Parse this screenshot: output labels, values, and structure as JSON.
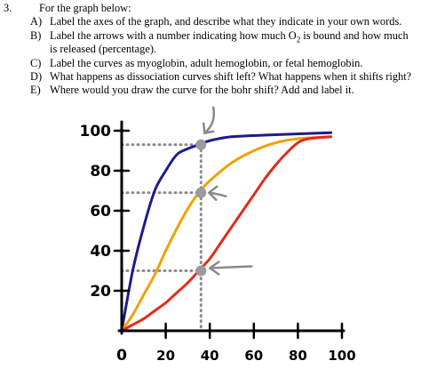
{
  "question": {
    "number": "3.",
    "header": "For the graph below:",
    "items": [
      {
        "letter": "A)",
        "text": "Label the axes of the graph, and describe what they indicate in your own words."
      },
      {
        "letter": "B)",
        "text_before": "Label the arrows with a number indicating how much O",
        "subscript": "2",
        "text_after": " is bound and how much",
        "continuation": "is released (percentage)."
      },
      {
        "letter": "C)",
        "text": "Label the curves as myoglobin, adult hemoglobin, or fetal hemoglobin."
      },
      {
        "letter": "D)",
        "text": "What happens as dissociation curves shift left? What happens when it shifts right?"
      },
      {
        "letter": "E)",
        "text": "Where would you draw the curve for the bohr shift? Add and label it."
      }
    ]
  },
  "chart_data": {
    "type": "line",
    "title": "",
    "xlabel": "",
    "ylabel": "",
    "xlim": [
      0,
      100
    ],
    "ylim": [
      0,
      100
    ],
    "x_ticks": [
      "0",
      "20",
      "40",
      "60",
      "80",
      "100"
    ],
    "y_ticks": [
      "20",
      "40",
      "60",
      "80",
      "100"
    ],
    "series": [
      {
        "color": "#1f1a8c",
        "points": [
          [
            0,
            0
          ],
          [
            5,
            30
          ],
          [
            10,
            52
          ],
          [
            15,
            70
          ],
          [
            20,
            80
          ],
          [
            25,
            88
          ],
          [
            30,
            91
          ],
          [
            35,
            93
          ],
          [
            40,
            95
          ],
          [
            50,
            97
          ],
          [
            70,
            98
          ],
          [
            95,
            99
          ]
        ]
      },
      {
        "color": "#f2a007",
        "points": [
          [
            0,
            0
          ],
          [
            5,
            8
          ],
          [
            10,
            18
          ],
          [
            15,
            28
          ],
          [
            20,
            40
          ],
          [
            25,
            51
          ],
          [
            30,
            61
          ],
          [
            35,
            69
          ],
          [
            40,
            75
          ],
          [
            50,
            84
          ],
          [
            60,
            90
          ],
          [
            70,
            94
          ],
          [
            80,
            96
          ],
          [
            95,
            97
          ]
        ]
      },
      {
        "color": "#e02b1a",
        "points": [
          [
            0,
            0
          ],
          [
            5,
            3
          ],
          [
            10,
            6
          ],
          [
            15,
            10
          ],
          [
            20,
            14
          ],
          [
            25,
            19
          ],
          [
            30,
            24
          ],
          [
            35,
            30
          ],
          [
            40,
            36
          ],
          [
            45,
            44
          ],
          [
            50,
            52
          ],
          [
            55,
            60
          ],
          [
            60,
            68
          ],
          [
            65,
            76
          ],
          [
            70,
            83
          ],
          [
            75,
            89
          ],
          [
            80,
            94
          ],
          [
            85,
            96
          ],
          [
            95,
            97
          ]
        ]
      }
    ],
    "markers": [
      {
        "x": 36,
        "y": 93,
        "color": "#9a9a9a"
      },
      {
        "x": 36,
        "y": 69,
        "color": "#9a9a9a"
      },
      {
        "x": 36,
        "y": 30,
        "color": "#9a9a9a"
      }
    ],
    "vertical_guide_x": 36,
    "arrows": [
      {
        "label": "arrow-top",
        "direction": "down"
      },
      {
        "label": "arrow-middle",
        "direction": "left"
      },
      {
        "label": "arrow-bottom",
        "direction": "left"
      }
    ],
    "grid": false
  }
}
